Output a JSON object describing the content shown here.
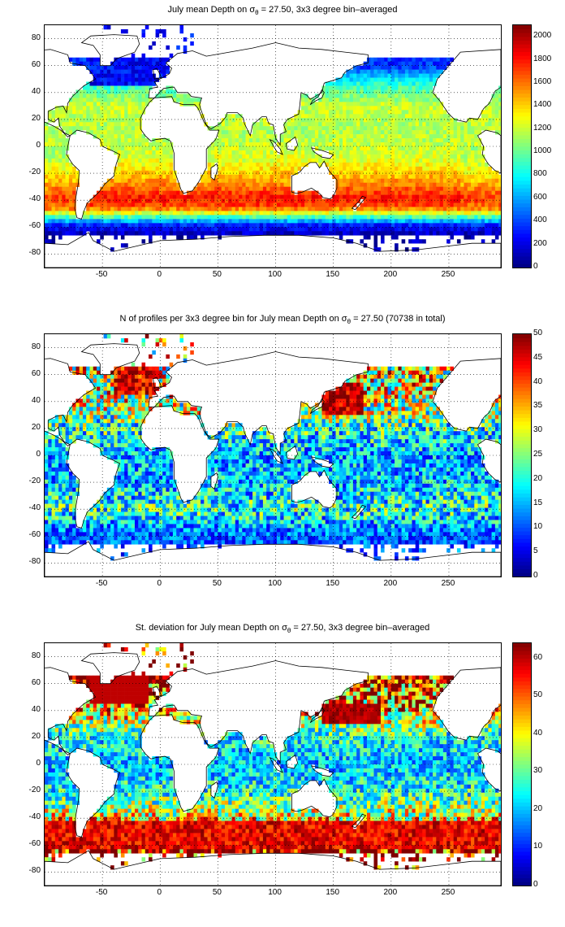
{
  "panels": [
    {
      "id": "mean-depth",
      "title_parts": [
        "July mean Depth on σ",
        "θ",
        " = 27.50, 3x3 degree bin–averaged"
      ],
      "colorbar_ticks": [
        "0",
        "200",
        "400",
        "600",
        "800",
        "1000",
        "1200",
        "1400",
        "1600",
        "1800",
        "2000"
      ],
      "colorbar_range": [
        0,
        2100
      ]
    },
    {
      "id": "profile-count",
      "title_parts": [
        "N of profiles per 3x3 degree bin for July mean Depth on σ",
        "θ",
        " = 27.50 (70738 in total)"
      ],
      "colorbar_ticks": [
        "0",
        "5",
        "10",
        "15",
        "20",
        "25",
        "30",
        "35",
        "40",
        "45",
        "50"
      ],
      "colorbar_range": [
        0,
        50
      ]
    },
    {
      "id": "std-dev",
      "title_parts": [
        "St. deviation for July mean Depth on σ",
        "θ",
        " = 27.50, 3x3 degree bin–averaged"
      ],
      "colorbar_ticks": [
        "0",
        "10",
        "20",
        "30",
        "40",
        "50",
        "60"
      ],
      "colorbar_range": [
        0,
        64
      ]
    }
  ],
  "axes": {
    "x_ticks": [
      "-50",
      "0",
      "50",
      "100",
      "150",
      "200",
      "250"
    ],
    "y_ticks": [
      "80",
      "60",
      "40",
      "20",
      "0",
      "-20",
      "-40",
      "-60",
      "-80"
    ]
  },
  "chart_data": [
    {
      "type": "heatmap",
      "title": "July mean Depth on σθ = 27.50, 3x3 degree bin-averaged",
      "xlim": [
        -100,
        295
      ],
      "ylim": [
        -90,
        90
      ],
      "grid": true,
      "colorbar": {
        "min": 0,
        "max": 2100,
        "colormap": "jet"
      },
      "bin_size_deg": 3,
      "zonal_profile": [
        {
          "lat": 70,
          "value": 400
        },
        {
          "lat": 60,
          "value": 350
        },
        {
          "lat": 45,
          "value": 900
        },
        {
          "lat": 30,
          "value": 1200
        },
        {
          "lat": 10,
          "value": 1150
        },
        {
          "lat": -10,
          "value": 1250
        },
        {
          "lat": -25,
          "value": 1500
        },
        {
          "lat": -38,
          "value": 1800
        },
        {
          "lat": -45,
          "value": 1700
        },
        {
          "lat": -52,
          "value": 1000
        },
        {
          "lat": -58,
          "value": 350
        },
        {
          "lat": -66,
          "value": 100
        }
      ]
    },
    {
      "type": "heatmap",
      "title": "N of profiles per 3x3 degree bin for July mean Depth on σθ = 27.50 (70738 in total)",
      "xlim": [
        -100,
        295
      ],
      "ylim": [
        -90,
        90
      ],
      "grid": true,
      "total_profiles": 70738,
      "colorbar": {
        "min": 0,
        "max": 50,
        "colormap": "jet"
      },
      "bin_size_deg": 3,
      "zonal_profile": [
        {
          "lat": 60,
          "value": 30
        },
        {
          "lat": 40,
          "value": 28
        },
        {
          "lat": 20,
          "value": 20
        },
        {
          "lat": 0,
          "value": 14
        },
        {
          "lat": -20,
          "value": 15
        },
        {
          "lat": -40,
          "value": 20
        },
        {
          "lat": -60,
          "value": 10
        }
      ]
    },
    {
      "type": "heatmap",
      "title": "St. deviation for July mean Depth on σθ = 27.50, 3x3 degree bin-averaged",
      "xlim": [
        -100,
        295
      ],
      "ylim": [
        -90,
        90
      ],
      "grid": true,
      "colorbar": {
        "min": 0,
        "max": 64,
        "colormap": "jet"
      },
      "bin_size_deg": 3,
      "zonal_profile": [
        {
          "lat": 60,
          "value": 55
        },
        {
          "lat": 40,
          "value": 45
        },
        {
          "lat": 20,
          "value": 25
        },
        {
          "lat": 0,
          "value": 20
        },
        {
          "lat": -20,
          "value": 25
        },
        {
          "lat": -40,
          "value": 40
        },
        {
          "lat": -50,
          "value": 62
        },
        {
          "lat": -60,
          "value": 60
        }
      ]
    }
  ]
}
